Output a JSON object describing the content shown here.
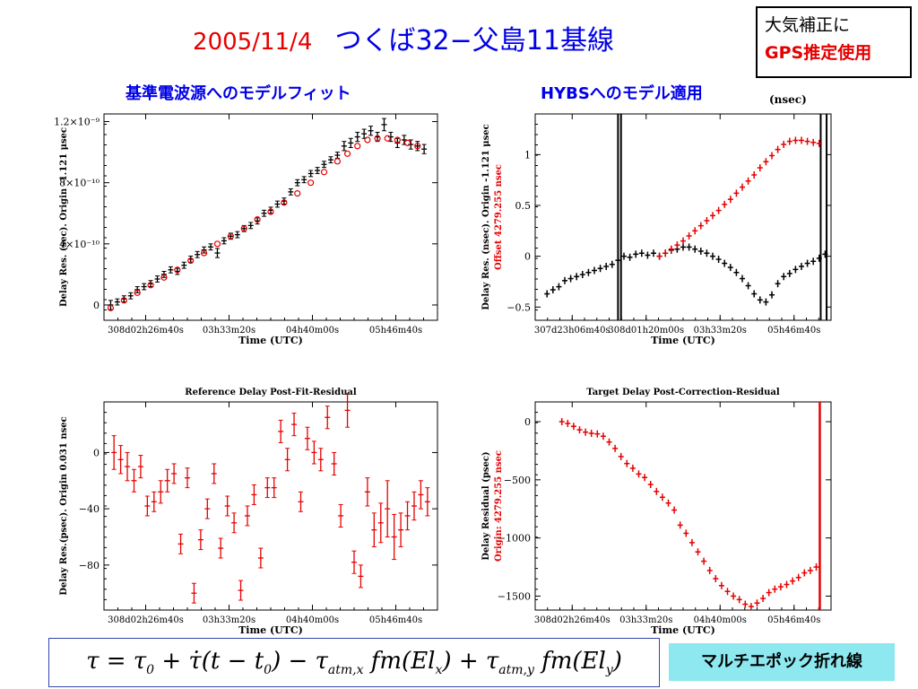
{
  "header": {
    "date": "2005/11/4",
    "baseline": "つくば32−父島11基線",
    "gps_note_line1": "大気補正に",
    "gps_note_line2": "GPS推定使用"
  },
  "subheadings": {
    "left": "基準電波源へのモデルフィット",
    "right": "HYBSへのモデル適用",
    "right_unit": "(nsec)"
  },
  "formula": {
    "text": "τ = τ0 + τ̇(t − t0) − τatm,x fm(Elx) + τatm,y fm(Ely)"
  },
  "multi_epoch_label": "マルチエポック折れ線",
  "colors": {
    "red": "#e60000",
    "blue": "#0000e6",
    "black": "#000000",
    "box_bg": "#8de8f0"
  },
  "chart_data": [
    {
      "id": "p1",
      "type": "scatter",
      "title": "",
      "xlabel": "Time (UTC)",
      "ylabel": "Delay Res. (sec). Origin -1.121 μsec",
      "x_ticks": [
        "308d02h26m40s",
        "03h33m20s",
        "04h40m00s",
        "05h46m40s"
      ],
      "y_ticks": [
        "0",
        "4×10⁻¹⁰",
        "8×10⁻¹⁰",
        "1.2×10⁻⁹"
      ],
      "xlim": [
        0,
        1
      ],
      "ylim": [
        -0.1,
        1.25
      ],
      "y_tick_values": [
        0,
        0.4,
        0.8,
        1.2
      ],
      "series": [
        {
          "marker": "errorbar",
          "color": "#000000",
          "x": [
            0.02,
            0.04,
            0.06,
            0.08,
            0.1,
            0.12,
            0.14,
            0.16,
            0.18,
            0.2,
            0.22,
            0.24,
            0.26,
            0.28,
            0.3,
            0.32,
            0.34,
            0.36,
            0.38,
            0.4,
            0.42,
            0.44,
            0.46,
            0.48,
            0.5,
            0.52,
            0.54,
            0.56,
            0.58,
            0.6,
            0.62,
            0.64,
            0.66,
            0.68,
            0.7,
            0.72,
            0.74,
            0.76,
            0.78,
            0.8,
            0.82,
            0.84,
            0.86,
            0.88,
            0.9,
            0.92,
            0.94,
            0.96
          ],
          "y": [
            0.0,
            0.02,
            0.04,
            0.06,
            0.1,
            0.12,
            0.14,
            0.17,
            0.2,
            0.23,
            0.22,
            0.26,
            0.3,
            0.33,
            0.36,
            0.38,
            0.34,
            0.42,
            0.45,
            0.46,
            0.5,
            0.52,
            0.55,
            0.6,
            0.62,
            0.66,
            0.68,
            0.74,
            0.8,
            0.82,
            0.86,
            0.88,
            0.92,
            0.95,
            0.98,
            1.04,
            1.06,
            1.1,
            1.12,
            1.14,
            1.1,
            1.18,
            1.1,
            1.06,
            1.08,
            1.05,
            1.04,
            1.02
          ],
          "err": [
            0.03,
            0.02,
            0.02,
            0.02,
            0.02,
            0.02,
            0.02,
            0.02,
            0.02,
            0.02,
            0.02,
            0.02,
            0.02,
            0.02,
            0.02,
            0.02,
            0.03,
            0.02,
            0.02,
            0.02,
            0.02,
            0.02,
            0.02,
            0.02,
            0.02,
            0.02,
            0.02,
            0.02,
            0.02,
            0.02,
            0.02,
            0.02,
            0.02,
            0.02,
            0.02,
            0.03,
            0.03,
            0.03,
            0.03,
            0.03,
            0.03,
            0.04,
            0.03,
            0.03,
            0.03,
            0.03,
            0.03,
            0.03
          ]
        },
        {
          "marker": "circle",
          "color": "#e60000",
          "x": [
            0.02,
            0.06,
            0.1,
            0.14,
            0.18,
            0.22,
            0.26,
            0.3,
            0.34,
            0.38,
            0.42,
            0.46,
            0.5,
            0.54,
            0.58,
            0.62,
            0.66,
            0.7,
            0.73,
            0.76,
            0.79,
            0.82,
            0.85,
            0.88,
            0.91,
            0.94
          ],
          "y": [
            -0.02,
            0.03,
            0.08,
            0.13,
            0.18,
            0.23,
            0.29,
            0.34,
            0.4,
            0.45,
            0.5,
            0.56,
            0.61,
            0.67,
            0.73,
            0.8,
            0.87,
            0.94,
            0.99,
            1.04,
            1.08,
            1.09,
            1.09,
            1.08,
            1.06,
            1.04
          ]
        }
      ]
    },
    {
      "id": "p2",
      "type": "scatter",
      "title": "",
      "xlabel": "Time (UTC)",
      "ylabel": "Delay Res. (nsec). Origin -1.121 μsec",
      "ylabel2": "Offset 4279.255 nsec",
      "x_ticks": [
        "307d23h06m40s",
        "308d01h20m00s",
        "03h33m20s",
        "05h46m40s"
      ],
      "y_ticks": [
        "−0.5",
        "0",
        "0.5",
        "1"
      ],
      "xlim": [
        0,
        1
      ],
      "ylim": [
        -0.63,
        1.4
      ],
      "y_tick_values": [
        -0.5,
        0,
        0.5,
        1
      ],
      "vlines": [
        0.28,
        0.29,
        0.965,
        0.985
      ],
      "series": [
        {
          "marker": "plus",
          "color": "#000000",
          "x": [
            0.04,
            0.06,
            0.08,
            0.1,
            0.12,
            0.14,
            0.16,
            0.18,
            0.2,
            0.22,
            0.24,
            0.26,
            0.28,
            0.3,
            0.32,
            0.34,
            0.36,
            0.38,
            0.4,
            0.42,
            0.44,
            0.46,
            0.48,
            0.5,
            0.52,
            0.54,
            0.56,
            0.58,
            0.6,
            0.62,
            0.64,
            0.66,
            0.68,
            0.7,
            0.72,
            0.74,
            0.76,
            0.78,
            0.8,
            0.82,
            0.84,
            0.86,
            0.88,
            0.9,
            0.92,
            0.94,
            0.96,
            0.98
          ],
          "y": [
            -0.37,
            -0.33,
            -0.3,
            -0.24,
            -0.22,
            -0.2,
            -0.18,
            -0.16,
            -0.14,
            -0.12,
            -0.1,
            -0.08,
            -0.04,
            0.0,
            -0.01,
            0.02,
            0.03,
            0.01,
            0.03,
            0.0,
            0.03,
            0.06,
            0.07,
            0.09,
            0.09,
            0.07,
            0.05,
            0.03,
            0.0,
            -0.03,
            -0.07,
            -0.11,
            -0.16,
            -0.22,
            -0.29,
            -0.37,
            -0.43,
            -0.45,
            -0.38,
            -0.27,
            -0.2,
            -0.17,
            -0.13,
            -0.1,
            -0.07,
            -0.05,
            -0.02,
            0.02
          ]
        },
        {
          "marker": "plus",
          "color": "#e60000",
          "x": [
            0.42,
            0.44,
            0.46,
            0.48,
            0.5,
            0.52,
            0.54,
            0.56,
            0.58,
            0.6,
            0.62,
            0.64,
            0.66,
            0.68,
            0.7,
            0.72,
            0.74,
            0.76,
            0.78,
            0.8,
            0.82,
            0.84,
            0.86,
            0.88,
            0.9,
            0.92,
            0.94,
            0.96
          ],
          "y": [
            0.0,
            0.03,
            0.07,
            0.11,
            0.15,
            0.2,
            0.25,
            0.3,
            0.35,
            0.4,
            0.45,
            0.51,
            0.56,
            0.62,
            0.68,
            0.74,
            0.8,
            0.87,
            0.93,
            0.99,
            1.05,
            1.1,
            1.13,
            1.14,
            1.14,
            1.13,
            1.12,
            1.11
          ]
        }
      ]
    },
    {
      "id": "p3",
      "type": "scatter",
      "title": "Reference Delay Post-Fit-Residual",
      "xlabel": "Time (UTC)",
      "ylabel": "Delay Res.(psec). Origin 0.031 nsec",
      "x_ticks": [
        "308d02h26m40s",
        "03h33m20s",
        "04h40m00s",
        "05h46m40s"
      ],
      "y_ticks": [
        "−80",
        "−40",
        "0"
      ],
      "xlim": [
        0,
        1
      ],
      "ylim": [
        -112,
        36
      ],
      "y_tick_values": [
        -80,
        -40,
        0
      ],
      "series": [
        {
          "marker": "errorbar",
          "color": "#e60000",
          "x": [
            0.03,
            0.05,
            0.07,
            0.09,
            0.11,
            0.13,
            0.15,
            0.17,
            0.19,
            0.21,
            0.23,
            0.25,
            0.27,
            0.29,
            0.31,
            0.33,
            0.35,
            0.37,
            0.39,
            0.41,
            0.43,
            0.45,
            0.47,
            0.49,
            0.51,
            0.53,
            0.55,
            0.57,
            0.59,
            0.61,
            0.63,
            0.65,
            0.67,
            0.69,
            0.71,
            0.73,
            0.75,
            0.77,
            0.79,
            0.81,
            0.83,
            0.85,
            0.87,
            0.89,
            0.91,
            0.93,
            0.95,
            0.97
          ],
          "y": [
            0,
            -5,
            -10,
            -20,
            -10,
            -38,
            -35,
            -28,
            -20,
            -15,
            -65,
            -18,
            -100,
            -62,
            -40,
            -15,
            -68,
            -38,
            -50,
            -98,
            -45,
            -30,
            -75,
            -25,
            -25,
            15,
            -5,
            20,
            -35,
            10,
            0,
            -5,
            25,
            -8,
            -45,
            30,
            -78,
            -88,
            -28,
            -55,
            -50,
            -40,
            -60,
            -55,
            -45,
            -38,
            -30,
            -35
          ],
          "err": [
            12,
            10,
            10,
            8,
            8,
            7,
            7,
            8,
            8,
            7,
            7,
            7,
            7,
            7,
            7,
            7,
            7,
            7,
            7,
            7,
            7,
            7,
            7,
            7,
            7,
            8,
            8,
            8,
            7,
            8,
            8,
            8,
            8,
            8,
            8,
            12,
            8,
            8,
            10,
            12,
            14,
            20,
            16,
            12,
            10,
            10,
            10,
            10
          ]
        }
      ]
    },
    {
      "id": "p4",
      "type": "scatter",
      "title": "Target Delay Post-Correction-Residual",
      "xlabel": "Time (UTC)",
      "ylabel": "Delay Residual (psec)",
      "ylabel2": "Origin: 4279.255 nsec",
      "x_ticks": [
        "308d02h26m40s",
        "03h33m20s",
        "04h40m00s",
        "05h46m40s"
      ],
      "y_ticks": [
        "−1500",
        "−1000",
        "−500",
        "0"
      ],
      "xlim": [
        0,
        1
      ],
      "ylim": [
        -1620,
        170
      ],
      "y_tick_values": [
        -1500,
        -1000,
        -500,
        0
      ],
      "vlines_red": [
        0.962
      ],
      "series": [
        {
          "marker": "plus",
          "color": "#e60000",
          "x": [
            0.09,
            0.11,
            0.13,
            0.15,
            0.17,
            0.19,
            0.21,
            0.23,
            0.25,
            0.27,
            0.29,
            0.31,
            0.33,
            0.35,
            0.37,
            0.39,
            0.41,
            0.43,
            0.45,
            0.47,
            0.49,
            0.51,
            0.53,
            0.55,
            0.57,
            0.59,
            0.61,
            0.63,
            0.65,
            0.67,
            0.69,
            0.71,
            0.73,
            0.75,
            0.77,
            0.79,
            0.81,
            0.83,
            0.85,
            0.87,
            0.89,
            0.91,
            0.93,
            0.95
          ],
          "y": [
            0,
            -15,
            -40,
            -70,
            -90,
            -100,
            -105,
            -125,
            -175,
            -230,
            -300,
            -360,
            -400,
            -450,
            -480,
            -540,
            -600,
            -650,
            -700,
            -760,
            -890,
            -960,
            -1040,
            -1120,
            -1200,
            -1280,
            -1350,
            -1410,
            -1460,
            -1500,
            -1530,
            -1570,
            -1590,
            -1560,
            -1520,
            -1470,
            -1440,
            -1420,
            -1400,
            -1370,
            -1340,
            -1300,
            -1280,
            -1250
          ]
        }
      ]
    }
  ]
}
